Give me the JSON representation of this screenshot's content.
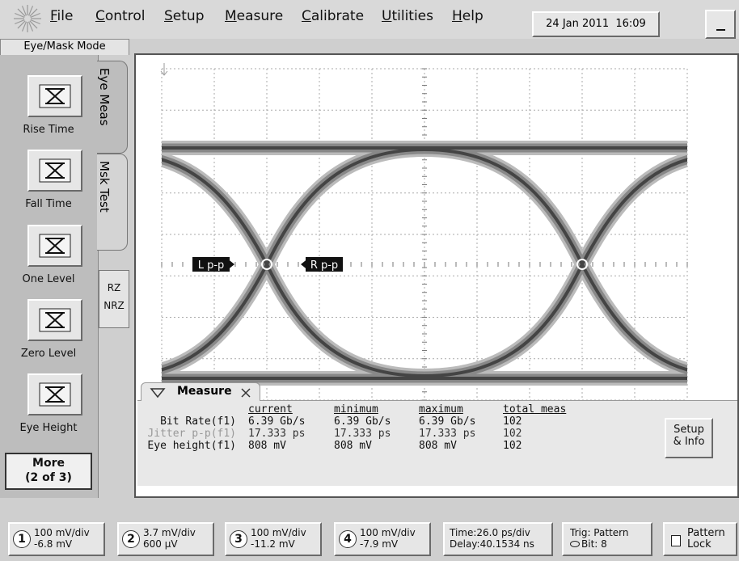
{
  "menu": [
    "File",
    "Control",
    "Setup",
    "Measure",
    "Calibrate",
    "Utilities",
    "Help"
  ],
  "datetime": "24 Jan 2011  16:09",
  "mode_tab": "Eye/Mask Mode",
  "side_tabs": [
    "Eye Meas",
    "Msk Test"
  ],
  "buttons": [
    "Rise Time",
    "Fall Time",
    "One Level",
    "Zero Level",
    "Eye Height"
  ],
  "more": {
    "label": "More",
    "page": "(2 of 3)"
  },
  "format": [
    "RZ",
    "NRZ"
  ],
  "markers": [
    "L p-p",
    "R p-p"
  ],
  "measure": {
    "title": "Measure",
    "columns": [
      "current",
      "minimum",
      "maximum",
      "total meas"
    ],
    "rows": [
      {
        "label": "Bit Rate(f1)",
        "values": [
          "6.39 Gb/s",
          "6.39 Gb/s",
          "6.39 Gb/s",
          "102"
        ]
      },
      {
        "label": "Jitter p-p(f1)",
        "values": [
          "17.333 ps",
          "17.333 ps",
          "17.333 ps",
          "102"
        ]
      },
      {
        "label": "Eye height(f1)",
        "values": [
          "808 mV",
          "808 mV",
          "808 mV",
          "102"
        ]
      }
    ],
    "button": [
      "Setup",
      "& Info"
    ]
  },
  "channels": [
    {
      "number": "1",
      "scale": "100 mV/div",
      "offset": "-6.8 mV"
    },
    {
      "number": "2",
      "scale": "3.7 mV/div",
      "offset": "600 µV"
    },
    {
      "number": "3",
      "scale": "100 mV/div",
      "offset": "-11.2 mV"
    },
    {
      "number": "4",
      "scale": "100 mV/div",
      "offset": "-7.9 mV"
    }
  ],
  "timebase": [
    "Time:26.0 ps/div",
    "Delay:40.1534 ns"
  ],
  "trigger": [
    "Trig: Pattern",
    "Bit: 8"
  ],
  "lock": [
    "Pattern",
    "Lock"
  ]
}
